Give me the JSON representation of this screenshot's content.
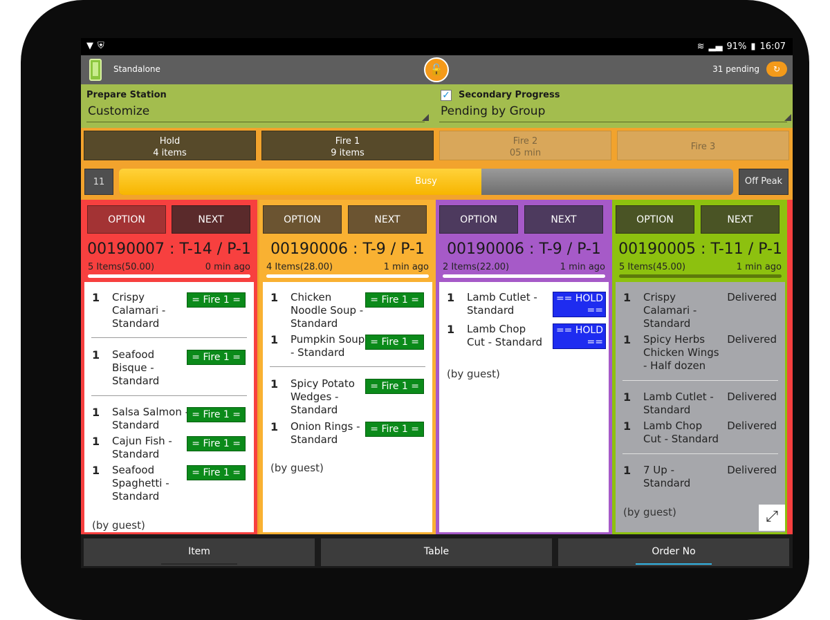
{
  "status_bar": {
    "battery": "91%",
    "time": "16:07"
  },
  "app_bar": {
    "mode": "Standalone",
    "pending": "31 pending"
  },
  "filters": {
    "station_label": "Prepare Station",
    "station_value": "Customize",
    "secondary_label": "Secondary Progress",
    "secondary_checked": true,
    "secondary_value": "Pending by Group"
  },
  "courses": [
    {
      "name": "Hold",
      "sub": "4 items"
    },
    {
      "name": "Fire 1",
      "sub": "9 items"
    },
    {
      "name": "Fire 2",
      "sub": "05 min"
    },
    {
      "name": "Fire 3",
      "sub": ""
    }
  ],
  "busy": {
    "count": "11",
    "label": "Busy",
    "level": 0.59,
    "right_label": "Off Peak"
  },
  "tickets": [
    {
      "option": "OPTION",
      "next": "NEXT",
      "color": "#f7403f",
      "title": "00190007 : T-14 / P-1",
      "items_summary": "5 Items(50.00)",
      "age": "0 min ago",
      "guest": "(by guest)",
      "lines": [
        {
          "qty": "1",
          "name": "Crispy Calamari - Standard",
          "status": "= Fire 1 ="
        },
        {
          "qty": "1",
          "name": "Seafood Bisque - Standard",
          "status": "= Fire 1 ="
        },
        {
          "qty": "1",
          "name": "Salsa Salmon - Standard",
          "status": "= Fire 1 ="
        },
        {
          "qty": "1",
          "name": "Cajun Fish - Standard",
          "status": "= Fire 1 ="
        },
        {
          "qty": "1",
          "name": "Seafood Spaghetti - Standard",
          "status": "= Fire 1 ="
        }
      ]
    },
    {
      "option": "OPTION",
      "next": "NEXT",
      "color": "#f9b132",
      "title": "00190006 : T-9 / P-1",
      "items_summary": "4 Items(28.00)",
      "age": "1 min ago",
      "guest": "(by guest)",
      "lines": [
        {
          "qty": "1",
          "name": "Chicken Noodle Soup - Standard",
          "status": "= Fire 1 ="
        },
        {
          "qty": "1",
          "name": "Pumpkin Soup - Standard",
          "status": "= Fire 1 ="
        },
        {
          "qty": "1",
          "name": "Spicy Potato Wedges - Standard",
          "status": "= Fire 1 ="
        },
        {
          "qty": "1",
          "name": "Onion Rings - Standard",
          "status": "= Fire 1 ="
        }
      ]
    },
    {
      "option": "OPTION",
      "next": "NEXT",
      "color": "#a65ac8",
      "title": "00190006 : T-9 / P-1",
      "items_summary": "2 Items(22.00)",
      "age": "1 min ago",
      "guest": "(by guest)",
      "lines": [
        {
          "qty": "1",
          "name": "Lamb Cutlet - Standard",
          "status": "== HOLD =="
        },
        {
          "qty": "1",
          "name": "Lamb Chop Cut - Standard",
          "status": "== HOLD =="
        }
      ]
    },
    {
      "option": "OPTION",
      "next": "NEXT",
      "color": "#8dc10f",
      "title": "00190005 : T-11 / P-1",
      "items_summary": "5 Items(45.00)",
      "age": "1 min ago",
      "guest": "(by guest)",
      "lines": [
        {
          "qty": "1",
          "name": "Crispy Calamari - Standard",
          "status": "Delivered"
        },
        {
          "qty": "1",
          "name": "Spicy Herbs Chicken Wings - Half dozen",
          "status": "Delivered"
        },
        {
          "qty": "1",
          "name": "Lamb Cutlet - Standard",
          "status": "Delivered"
        },
        {
          "qty": "1",
          "name": "Lamb Chop Cut - Standard",
          "status": "Delivered"
        },
        {
          "qty": "1",
          "name": "7 Up - Standard",
          "status": "Delivered"
        }
      ]
    }
  ],
  "bottom_nav": [
    {
      "label": "Item",
      "active": false
    },
    {
      "label": "Table",
      "active": false
    },
    {
      "label": "Order No",
      "active": true
    }
  ],
  "colors": {
    "accent": "#f49a1a",
    "fire": "#0b8a1a",
    "hold": "#1e2cf0",
    "active_tab": "#33b5e5"
  }
}
